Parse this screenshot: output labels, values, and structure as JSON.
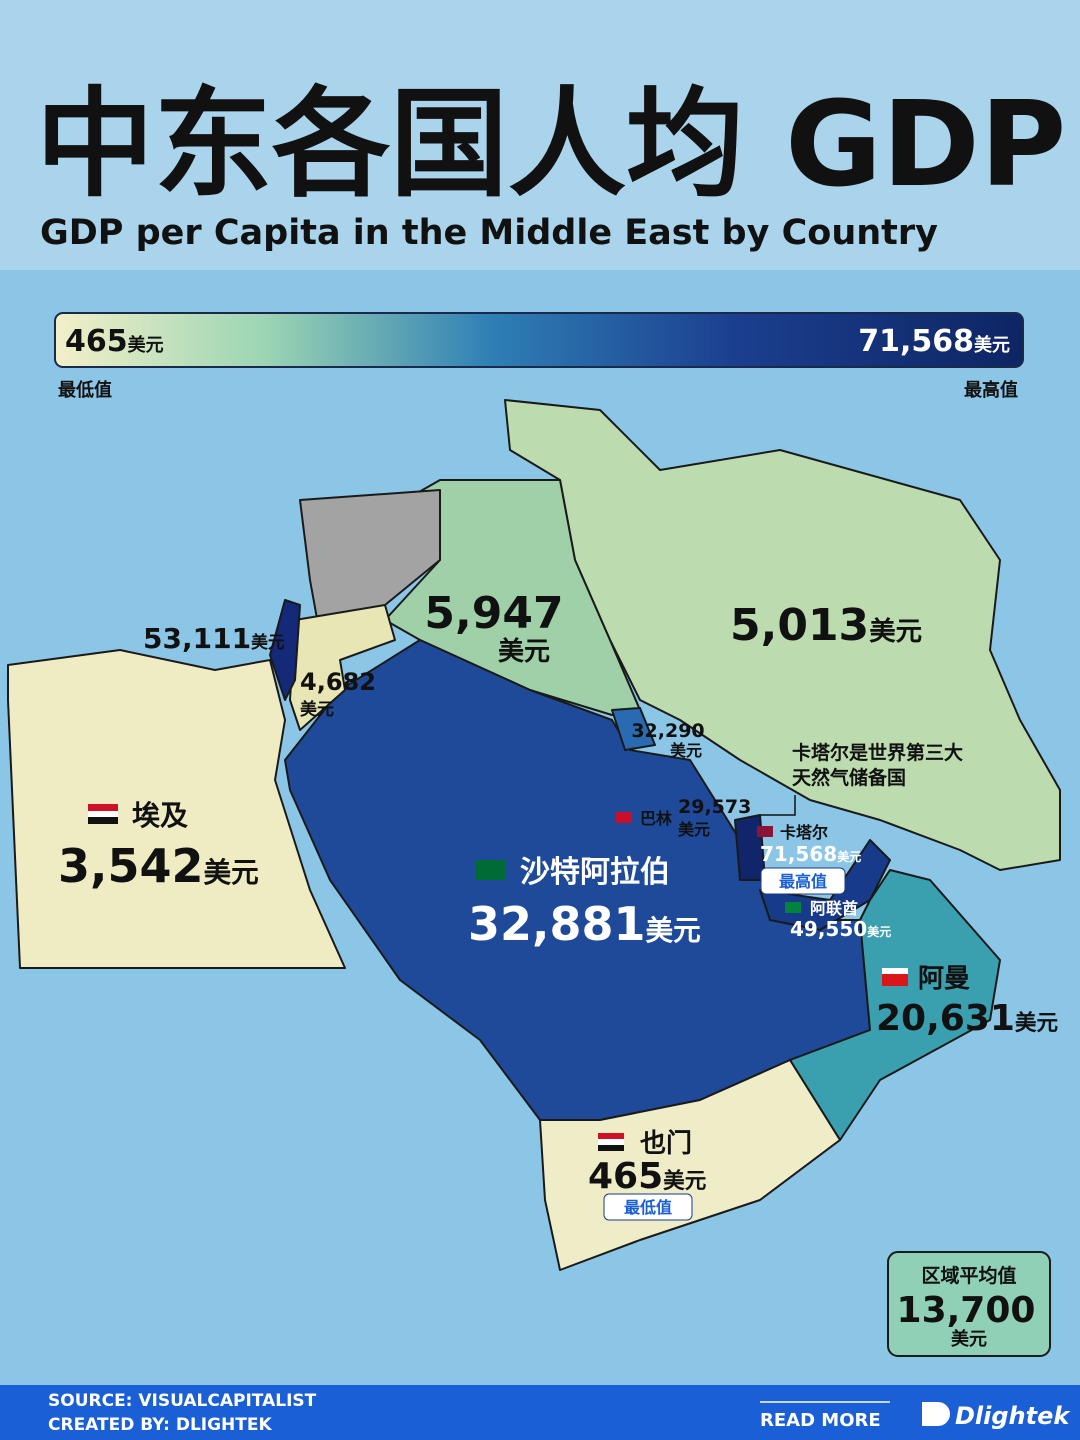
{
  "header": {
    "title": "中东各国人均 GDP",
    "subtitle": "GDP per Capita in the Middle East by Country"
  },
  "legend": {
    "min": {
      "value": "465",
      "unit": "美元",
      "label": "最低值"
    },
    "max": {
      "value": "71,568",
      "unit": "美元",
      "label": "最高值"
    }
  },
  "countries": [
    {
      "value": "53,111",
      "unit": "美元"
    },
    {
      "value": "4,682",
      "unit": "美元"
    },
    {
      "value": "5,947",
      "unit": "美元"
    },
    {
      "value": "5,013",
      "unit": "美元"
    },
    {
      "value": "32,290",
      "unit": "美元"
    },
    {
      "name": "巴林",
      "value": "29,573",
      "unit": "美元"
    },
    {
      "name": "卡塔尔",
      "value": "71,568",
      "unit": "美元",
      "badge": "最高值"
    },
    {
      "name": "阿联酋",
      "value": "49,550",
      "unit": "美元"
    },
    {
      "name": "埃及",
      "value": "3,542",
      "unit": "美元"
    },
    {
      "name": "沙特阿拉伯",
      "value": "32,881",
      "unit": "美元"
    },
    {
      "name": "阿曼",
      "value": "20,631",
      "unit": "美元"
    },
    {
      "name": "也门",
      "value": "465",
      "unit": "美元",
      "badge": "最低值"
    }
  ],
  "annotation": {
    "lines": [
      "卡塔尔是世界第三大",
      "天然气储备国"
    ]
  },
  "average": {
    "label": "区域平均值",
    "value": "13,700",
    "unit": "美元"
  },
  "footer": {
    "source": "SOURCE: VISUALCAPITALIST",
    "credit": "CREATED BY: DLIGHTEK",
    "read_more": "READ MORE",
    "brand": "Dlightek"
  }
}
